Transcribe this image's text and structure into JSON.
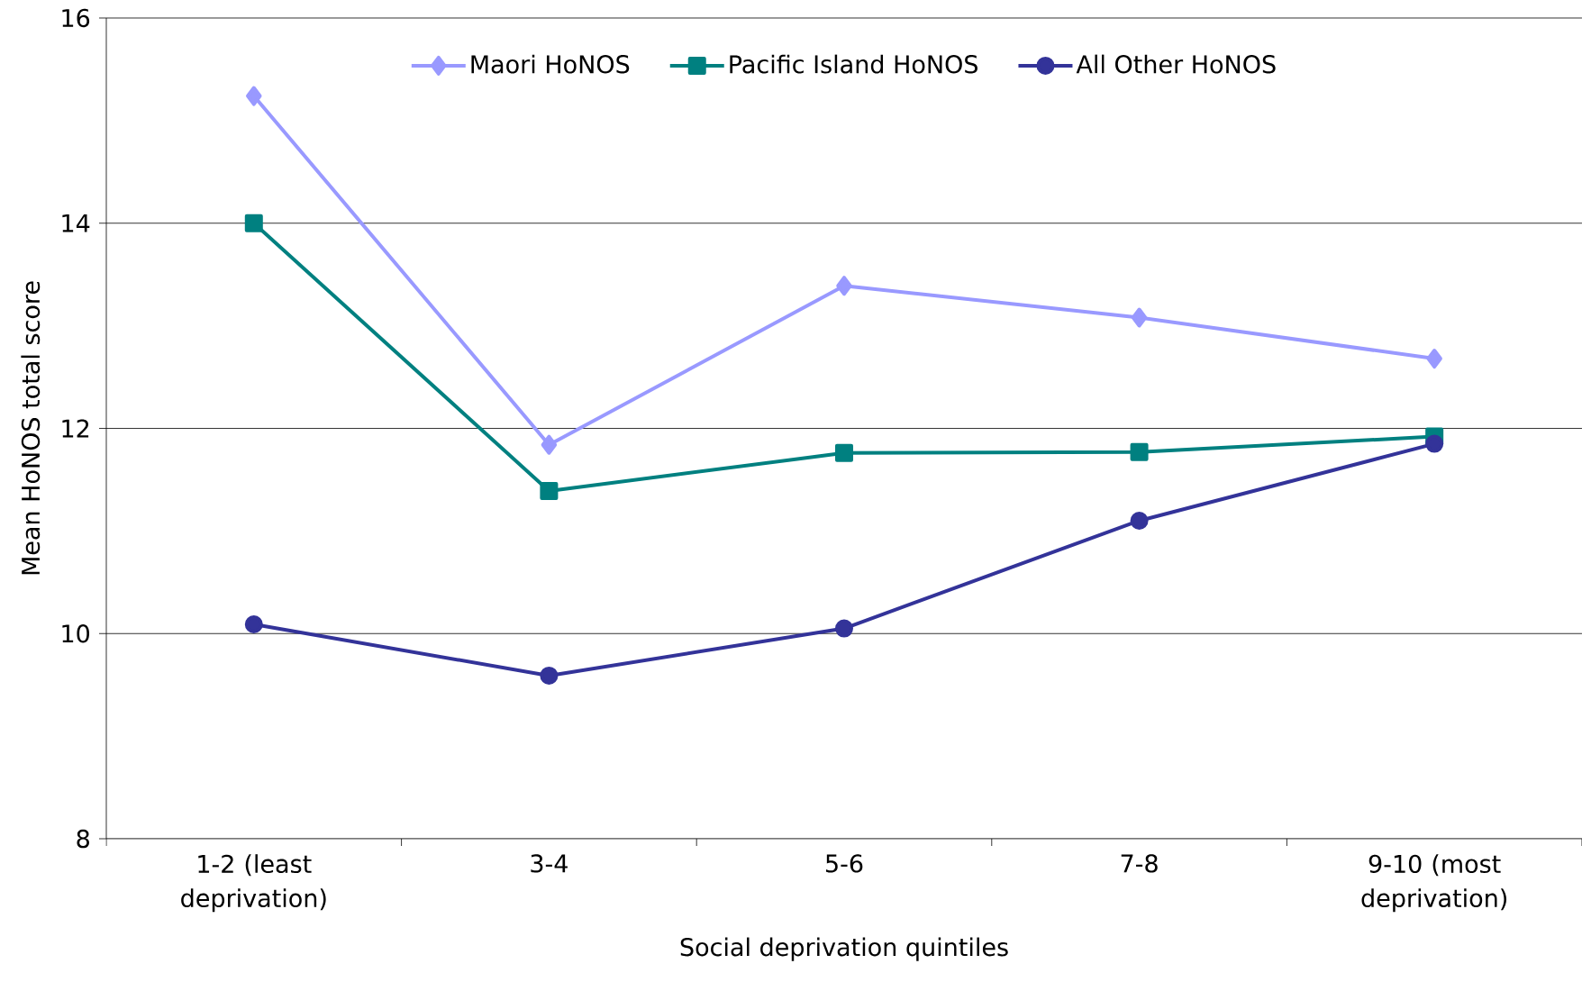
{
  "chart_data": {
    "type": "line",
    "xlabel": "Social deprivation quintiles",
    "ylabel": "Mean HoNOS total score",
    "categories": [
      "1-2 (least deprivation)",
      "3-4",
      "5-6",
      "7-8",
      "9-10 (most deprivation)"
    ],
    "series": [
      {
        "name": "Maori HoNOS",
        "color": "#9999ff",
        "marker": "diamond",
        "values": [
          15.24,
          11.84,
          13.39,
          13.08,
          12.68
        ]
      },
      {
        "name": "Pacific Island HoNOS",
        "color": "#008080",
        "marker": "square",
        "values": [
          14.0,
          11.39,
          11.76,
          11.77,
          11.92
        ]
      },
      {
        "name": "All Other HoNOS",
        "color": "#333399",
        "marker": "circle",
        "values": [
          10.09,
          9.59,
          10.05,
          11.1,
          11.85
        ]
      }
    ],
    "ylim": [
      8,
      16
    ],
    "yticks": [
      8,
      10,
      12,
      14,
      16
    ],
    "grid": "y",
    "legend": "top",
    "line_style": "solid"
  }
}
